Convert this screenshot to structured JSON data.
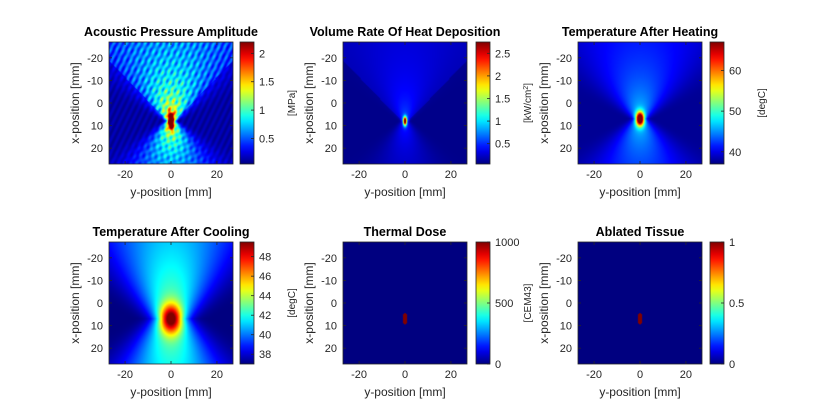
{
  "figure": {
    "background": "#ffffff",
    "colormap": "jet"
  },
  "chart_data": [
    {
      "type": "heatmap",
      "title": "Acoustic Pressure Amplitude",
      "xlabel": "y-position [mm]",
      "ylabel": "x-position [mm]",
      "xlim": [
        -27,
        27
      ],
      "ylim": [
        -27,
        27
      ],
      "xticks": [
        -20,
        0,
        20
      ],
      "yticks": [
        -20,
        -10,
        0,
        10,
        20
      ],
      "y_axis_reversed": true,
      "colorbar": {
        "label": "[MPa]",
        "label_sup": "",
        "range": [
          0.05,
          2.2
        ],
        "ticks": [
          0.5,
          1,
          1.5,
          2
        ]
      },
      "field": "pressure"
    },
    {
      "type": "heatmap",
      "title": "Volume Rate Of Heat Deposition",
      "xlabel": "y-position [mm]",
      "ylabel": "x-position [mm]",
      "xlim": [
        -27,
        27
      ],
      "ylim": [
        -27,
        27
      ],
      "xticks": [
        -20,
        0,
        20
      ],
      "yticks": [
        -20,
        -10,
        0,
        10,
        20
      ],
      "y_axis_reversed": true,
      "colorbar": {
        "label": "[kW/cm",
        "label_sup": "2",
        "label_end": "]",
        "range": [
          0.05,
          2.75
        ],
        "ticks": [
          0.5,
          1,
          1.5,
          2,
          2.5
        ]
      },
      "field": "heat"
    },
    {
      "type": "heatmap",
      "title": "Temperature After Heating",
      "xlabel": "y-position [mm]",
      "ylabel": "x-position [mm]",
      "xlim": [
        -27,
        27
      ],
      "ylim": [
        -27,
        27
      ],
      "xticks": [
        -20,
        0,
        20
      ],
      "yticks": [
        -20,
        -10,
        0,
        10,
        20
      ],
      "y_axis_reversed": true,
      "colorbar": {
        "label": "[degC]",
        "label_sup": "",
        "range": [
          37,
          67
        ],
        "ticks": [
          40,
          50,
          60
        ]
      },
      "field": "temp_heat"
    },
    {
      "type": "heatmap",
      "title": "Temperature After Cooling",
      "xlabel": "y-position [mm]",
      "ylabel": "x-position [mm]",
      "xlim": [
        -27,
        27
      ],
      "ylim": [
        -27,
        27
      ],
      "xticks": [
        -20,
        0,
        20
      ],
      "yticks": [
        -20,
        -10,
        0,
        10,
        20
      ],
      "y_axis_reversed": true,
      "colorbar": {
        "label": "[degC]",
        "label_sup": "",
        "range": [
          37,
          49.5
        ],
        "ticks": [
          38,
          40,
          42,
          44,
          46,
          48
        ]
      },
      "field": "temp_cool"
    },
    {
      "type": "heatmap",
      "title": "Thermal Dose",
      "xlabel": "y-position [mm]",
      "ylabel": "x-position [mm]",
      "xlim": [
        -27,
        27
      ],
      "ylim": [
        -27,
        27
      ],
      "xticks": [
        -20,
        0,
        20
      ],
      "yticks": [
        -20,
        -10,
        0,
        10,
        20
      ],
      "y_axis_reversed": true,
      "colorbar": {
        "label": "[CEM43]",
        "label_sup": "",
        "range": [
          0,
          1000
        ],
        "ticks": [
          0,
          500,
          1000
        ]
      },
      "field": "dose"
    },
    {
      "type": "heatmap",
      "title": "Ablated Tissue",
      "xlabel": "y-position [mm]",
      "ylabel": "x-position [mm]",
      "xlim": [
        -27,
        27
      ],
      "ylim": [
        -27,
        27
      ],
      "xticks": [
        -20,
        0,
        20
      ],
      "yticks": [
        -20,
        -10,
        0,
        10,
        20
      ],
      "y_axis_reversed": true,
      "colorbar": {
        "label": "",
        "label_sup": "",
        "range": [
          0,
          1
        ],
        "ticks": [
          0,
          0.5,
          1
        ]
      },
      "field": "ablated"
    }
  ]
}
